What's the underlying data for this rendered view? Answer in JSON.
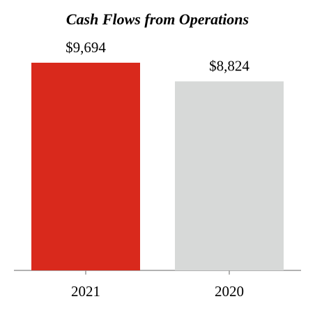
{
  "chart_data": {
    "type": "bar",
    "title": "Cash Flows from Operations",
    "categories": [
      "2021",
      "2020"
    ],
    "values": [
      9694,
      8824
    ],
    "value_labels": [
      "$9,694",
      "$8,824"
    ],
    "colors": [
      "#d9291c",
      "#d7d9d8"
    ]
  }
}
